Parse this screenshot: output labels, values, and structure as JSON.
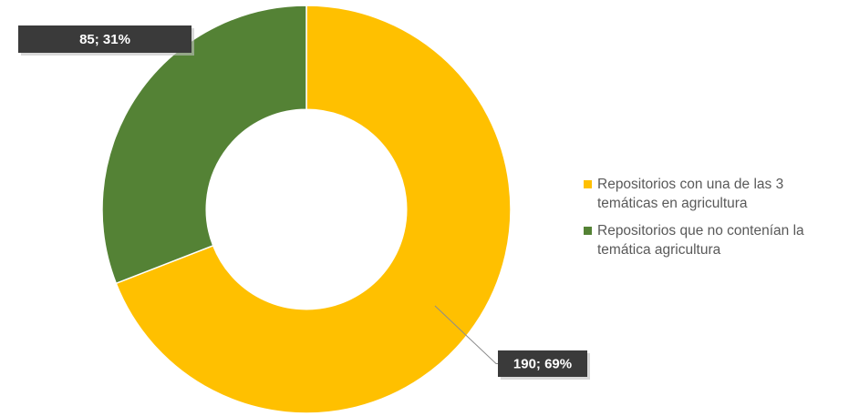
{
  "chart_data": {
    "type": "donut",
    "title": "",
    "series": [
      {
        "name": "Repositorios con una de las 3 temáticas en agricultura",
        "value": 190,
        "percent": 69,
        "label": "190; 69%",
        "color": "#FFC000"
      },
      {
        "name": "Repositorios que no contenían la temática agricultura",
        "value": 85,
        "percent": 31,
        "label": "85; 31%",
        "color": "#548235"
      }
    ],
    "legend_position": "right",
    "data_label_style": {
      "background": "#3A3A3A",
      "text_color": "#FFFFFF"
    },
    "hole_fraction": 0.49
  }
}
